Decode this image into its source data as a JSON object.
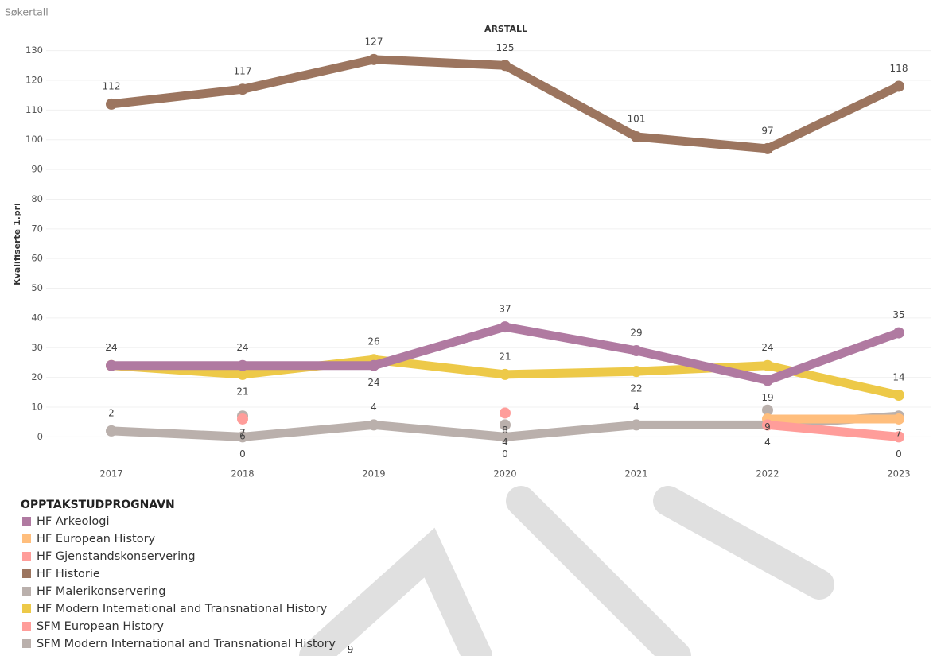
{
  "page_title": "Søkertall",
  "page_number": "9",
  "chart_data": {
    "type": "line",
    "column_header": "ARSTALL",
    "y_label": "Kvalifiserte 1.pri",
    "legend_title": "OPPTAKSTUDPROGNAVN",
    "categories": [
      "2017",
      "2018",
      "2019",
      "2020",
      "2021",
      "2022",
      "2023"
    ],
    "ylim": [
      -9,
      139
    ],
    "yticks": [
      0,
      10,
      20,
      30,
      40,
      50,
      60,
      70,
      80,
      90,
      100,
      110,
      120,
      130
    ],
    "grid": true,
    "series": [
      {
        "name": "HF Arkeologi",
        "color": "#b07aa1",
        "values": [
          24,
          24,
          24,
          37,
          29,
          19,
          35
        ]
      },
      {
        "name": "HF European History",
        "color": "#ffbe7d",
        "values": [
          null,
          null,
          null,
          null,
          null,
          6,
          6
        ],
        "labels": false
      },
      {
        "name": "HF Gjenstandskonservering",
        "color": "#ff9d9a",
        "values": [
          null,
          6,
          null,
          8,
          null,
          4,
          0
        ]
      },
      {
        "name": "HF Historie",
        "color": "#9c755f",
        "values": [
          112,
          117,
          127,
          125,
          101,
          97,
          118
        ]
      },
      {
        "name": "HF Malerikonservering",
        "color": "#bab0ac",
        "values": [
          null,
          7,
          null,
          4,
          null,
          9,
          null
        ]
      },
      {
        "name": "HF Modern International and Transnational History",
        "color": "#edc948",
        "values": [
          24,
          21,
          26,
          21,
          22,
          24,
          14
        ]
      },
      {
        "name": "SFM European History",
        "color": "#ff9d9a",
        "values": [
          null,
          null,
          null,
          null,
          null,
          null,
          null
        ]
      },
      {
        "name": "SFM Modern International and Transnational History",
        "color": "#bab0ac",
        "values": [
          2,
          0,
          4,
          0,
          4,
          4,
          7
        ]
      }
    ]
  }
}
